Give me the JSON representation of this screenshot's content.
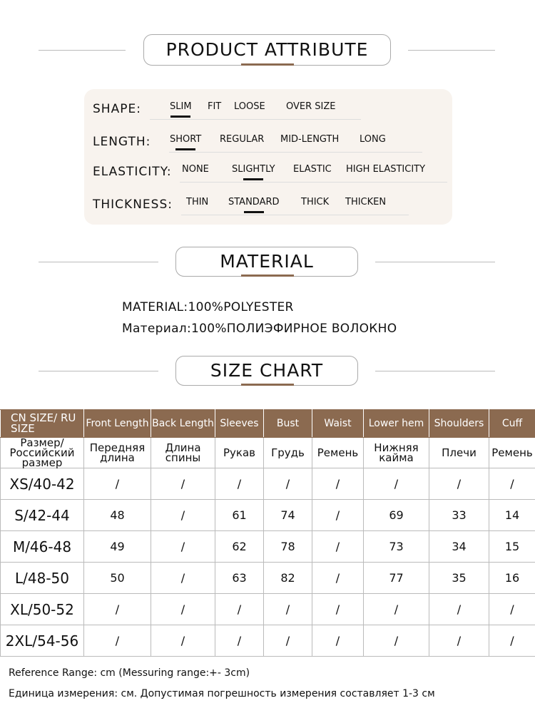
{
  "sections": {
    "attribute_title": "PRODUCT ATTRIBUTE",
    "material_title": "MATERIAL",
    "size_chart_title": "SIZE CHART"
  },
  "attributes": [
    {
      "label": "SHAPE:",
      "options": [
        "SLIM",
        "FIT",
        "LOOSE",
        "OVER SIZE"
      ],
      "selected": "SLIM"
    },
    {
      "label": "LENGTH:",
      "options": [
        "SHORT",
        "REGULAR",
        "MID-LENGTH",
        "LONG"
      ],
      "selected": "SHORT"
    },
    {
      "label": "ELASTICITY:",
      "options": [
        "NONE",
        "SLIGHTLY",
        "ELASTIC",
        "HIGH ELASTICITY"
      ],
      "selected": "SLIGHTLY"
    },
    {
      "label": "THICKNESS:",
      "options": [
        "THIN",
        "STANDARD",
        "THICK",
        "THICKEN"
      ],
      "selected": "STANDARD"
    }
  ],
  "material": {
    "en": "MATERIAL:100%POLYESTER",
    "ru": "Материал:100%ПОЛИЭФИРНОЕ ВОЛОКНО"
  },
  "size_chart": {
    "headers_en": [
      "CN SIZE/ RU SIZE",
      "Front Length",
      "Back Length",
      "Sleeves",
      "Bust",
      "Waist",
      "Lower hem",
      "Shoulders",
      "Cuff"
    ],
    "headers_ru": [
      "Размер/ Российский размер",
      "Передняя длина",
      "Длина спины",
      "Рукав",
      "Грудь",
      "Ремень",
      "Нижняя кайма",
      "Плечи",
      "Ремень"
    ],
    "rows": [
      [
        "XS/40-42",
        "/",
        "/",
        "/",
        "/",
        "/",
        "/",
        "/",
        "/"
      ],
      [
        "S/42-44",
        "48",
        "/",
        "61",
        "74",
        "/",
        "69",
        "33",
        "14"
      ],
      [
        "M/46-48",
        "49",
        "/",
        "62",
        "78",
        "/",
        "73",
        "34",
        "15"
      ],
      [
        "L/48-50",
        "50",
        "/",
        "63",
        "82",
        "/",
        "77",
        "35",
        "16"
      ],
      [
        "XL/50-52",
        "/",
        "/",
        "/",
        "/",
        "/",
        "/",
        "/",
        "/"
      ],
      [
        "2XL/54-56",
        "/",
        "/",
        "/",
        "/",
        "/",
        "/",
        "/",
        "/"
      ]
    ]
  },
  "notes": {
    "en": "Reference Range: cm (Messuring range:+- 3cm)",
    "ru": "Единица измерения: см. Допустимая погрешность измерения составляет 1-3 см"
  },
  "colors": {
    "accent": "#8b6a50",
    "panel": "#f8f3ee"
  }
}
